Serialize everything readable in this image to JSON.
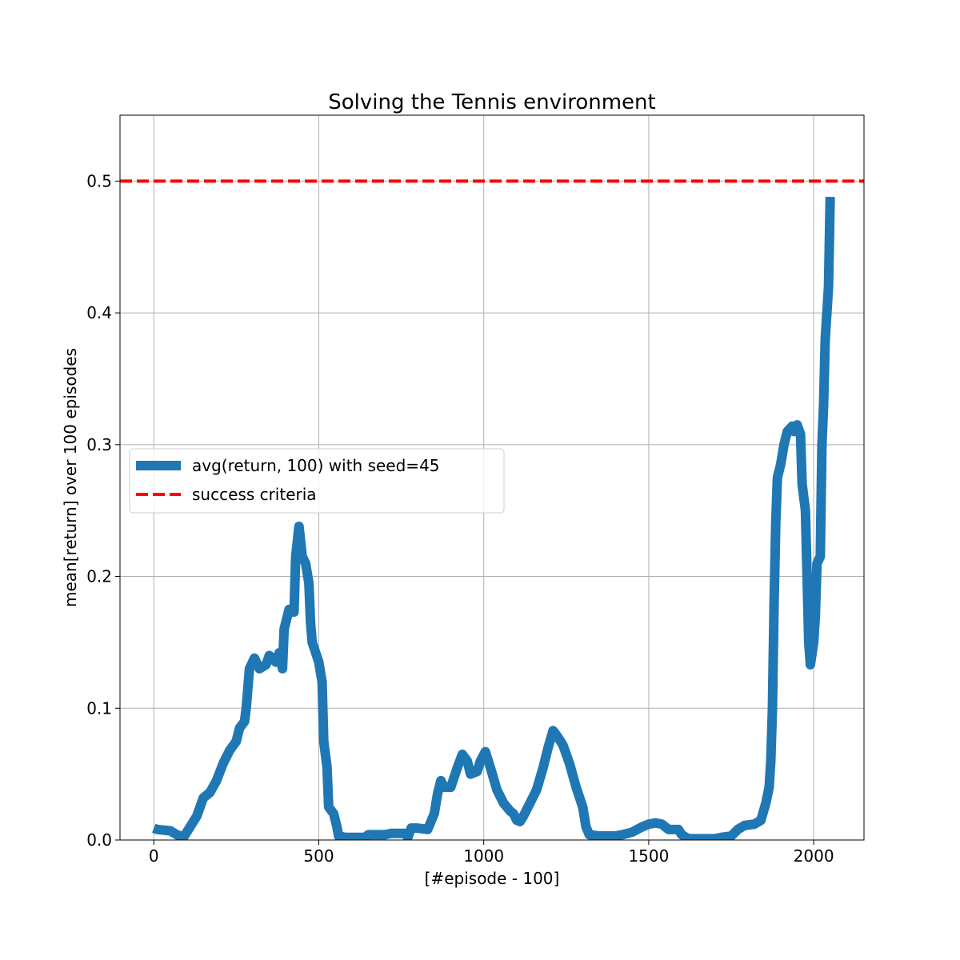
{
  "chart_data": {
    "type": "line",
    "title": "Solving the Tennis environment",
    "xlabel": "[#episode - 100]",
    "ylabel": "mean[return] over 100 episodes",
    "xlim": [
      -102.5,
      2152.5
    ],
    "ylim": [
      0,
      0.55
    ],
    "xticks": [
      0,
      500,
      1000,
      1500,
      2000
    ],
    "yticks": [
      {
        "value": 0,
        "label": "0.0"
      },
      0.1,
      0.2,
      0.3,
      0.4,
      0.5
    ],
    "grid": true,
    "legend": "center left",
    "series": [
      {
        "name": "avg(return, 100) with seed=45",
        "color": "#1f77b4",
        "x": [
          0,
          10,
          50,
          70,
          90,
          110,
          130,
          150,
          170,
          190,
          210,
          230,
          250,
          260,
          275,
          280,
          285,
          290,
          305,
          320,
          340,
          350,
          370,
          380,
          390,
          395,
          410,
          425,
          430,
          440,
          450,
          460,
          470,
          475,
          480,
          500,
          510,
          515,
          525,
          530,
          545,
          555,
          560,
          580,
          640,
          650,
          700,
          720,
          760,
          770,
          780,
          800,
          830,
          850,
          860,
          870,
          880,
          900,
          920,
          935,
          950,
          960,
          980,
          990,
          1005,
          1020,
          1040,
          1060,
          1080,
          1090,
          1100,
          1110,
          1120,
          1140,
          1160,
          1180,
          1195,
          1210,
          1225,
          1240,
          1260,
          1280,
          1300,
          1310,
          1320,
          1350,
          1400,
          1420,
          1450,
          1480,
          1500,
          1520,
          1540,
          1560,
          1590,
          1600,
          1620,
          1700,
          1720,
          1750,
          1770,
          1790,
          1820,
          1840,
          1855,
          1865,
          1870,
          1875,
          1880,
          1885,
          1890,
          1900,
          1910,
          1920,
          1935,
          1940,
          1950,
          1960,
          1965,
          1975,
          1980,
          1985,
          1990,
          2000,
          2005,
          2010,
          2020,
          2025,
          2030,
          2035,
          2045,
          2050
        ],
        "values": [
          0.009,
          0.008,
          0.007,
          0.004,
          0.002,
          0.01,
          0.018,
          0.032,
          0.036,
          0.045,
          0.058,
          0.068,
          0.075,
          0.085,
          0.09,
          0.1,
          0.115,
          0.13,
          0.138,
          0.13,
          0.133,
          0.14,
          0.135,
          0.142,
          0.13,
          0.16,
          0.175,
          0.173,
          0.215,
          0.238,
          0.215,
          0.21,
          0.195,
          0.165,
          0.15,
          0.135,
          0.12,
          0.075,
          0.055,
          0.025,
          0.02,
          0.01,
          0.003,
          0.002,
          0.002,
          0.004,
          0.004,
          0.005,
          0.005,
          0.002,
          0.009,
          0.009,
          0.008,
          0.02,
          0.035,
          0.045,
          0.04,
          0.04,
          0.055,
          0.065,
          0.06,
          0.05,
          0.052,
          0.06,
          0.067,
          0.055,
          0.038,
          0.028,
          0.022,
          0.02,
          0.015,
          0.014,
          0.018,
          0.028,
          0.038,
          0.055,
          0.07,
          0.083,
          0.078,
          0.072,
          0.058,
          0.04,
          0.025,
          0.01,
          0.004,
          0.003,
          0.003,
          0.004,
          0.006,
          0.01,
          0.012,
          0.013,
          0.012,
          0.008,
          0.008,
          0.004,
          0.001,
          0.001,
          0.002,
          0.003,
          0.008,
          0.011,
          0.012,
          0.015,
          0.028,
          0.04,
          0.06,
          0.1,
          0.18,
          0.24,
          0.275,
          0.285,
          0.3,
          0.31,
          0.314,
          0.31,
          0.315,
          0.308,
          0.27,
          0.25,
          0.2,
          0.15,
          0.133,
          0.15,
          0.17,
          0.21,
          0.215,
          0.3,
          0.33,
          0.38,
          0.42,
          0.488
        ]
      },
      {
        "name": "success criteria",
        "color": "#ff0000",
        "hline": 0.5,
        "style": "dashed"
      }
    ]
  }
}
